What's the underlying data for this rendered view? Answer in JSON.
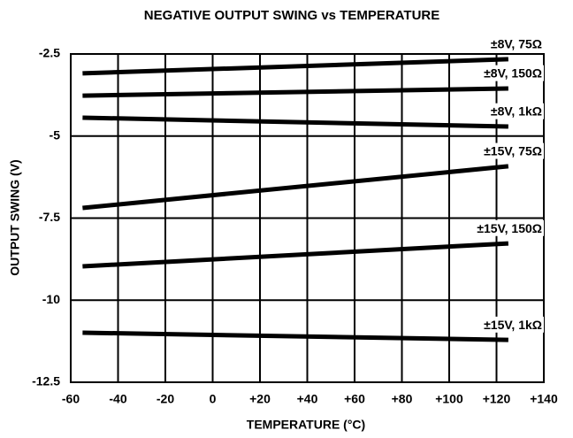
{
  "chart_data": {
    "type": "line",
    "title": "NEGATIVE OUTPUT SWING vs TEMPERATURE",
    "x_label": "TEMPERATURE (°C)",
    "y_label": "OUTPUT SWING (V)",
    "x": [
      -55,
      125
    ],
    "series": [
      {
        "name": "±8V, 75Ω",
        "color": "#000000",
        "values": [
          -3.09,
          -2.66
        ]
      },
      {
        "name": "±8V, 150Ω",
        "color": "#000000",
        "values": [
          -3.77,
          -3.55
        ]
      },
      {
        "name": "±8V, 1kΩ",
        "color": "#000000",
        "values": [
          -4.44,
          -4.71
        ]
      },
      {
        "name": "±15V, 75Ω",
        "color": "#000000",
        "values": [
          -7.19,
          -5.92
        ]
      },
      {
        "name": "±15V, 150Ω",
        "color": "#000000",
        "values": [
          -8.97,
          -8.27
        ]
      },
      {
        "name": "±15V, 1kΩ",
        "color": "#000000",
        "values": [
          -10.99,
          -11.21
        ]
      }
    ],
    "xlim": [
      -60,
      140
    ],
    "xticks": [
      -60,
      -40,
      -20,
      0,
      {
        "value": 20,
        "label": "+20"
      },
      {
        "value": 40,
        "label": "+40"
      },
      {
        "value": 60,
        "label": "+60"
      },
      {
        "value": 80,
        "label": "+80"
      },
      {
        "value": 100,
        "label": "+100"
      },
      {
        "value": 120,
        "label": "+120"
      },
      {
        "value": 140,
        "label": "+140"
      }
    ],
    "ylim": [
      -12.5,
      -2.5
    ],
    "yticks": [
      -12.5,
      -10,
      -7.5,
      -5,
      -2.5
    ],
    "grid": true
  }
}
